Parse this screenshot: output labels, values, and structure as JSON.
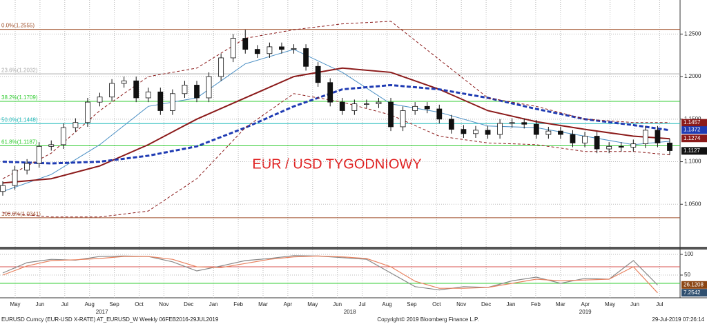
{
  "chart_data": {
    "type": "candlestick",
    "title": "EUR / USD TYGODNIOWY",
    "ylim": [
      1.0,
      1.29
    ],
    "yticks": [
      {
        "value": 1.25,
        "label": "1.2500"
      },
      {
        "value": 1.2,
        "label": "1.2000"
      },
      {
        "value": 1.15,
        "label": "1.1500"
      },
      {
        "value": 1.1,
        "label": "1.1000"
      },
      {
        "value": 1.05,
        "label": "1.0500"
      }
    ],
    "grid": true,
    "years": [
      {
        "year": "2017",
        "months": [
          "May",
          "Jun",
          "Jul",
          "Aug",
          "Sep",
          "Oct",
          "Nov",
          "Dec"
        ]
      },
      {
        "year": "2018",
        "months": [
          "Jan",
          "Feb",
          "Mar",
          "Apr",
          "May",
          "Jun",
          "Jul",
          "Aug",
          "Sep",
          "Oct",
          "Nov",
          "Dec"
        ]
      },
      {
        "year": "2019",
        "months": [
          "Jan",
          "Feb",
          "Mar",
          "Apr",
          "May",
          "Jun",
          "Jul"
        ]
      }
    ],
    "candles": {
      "open": [
        1.065,
        1.072,
        1.09,
        1.098,
        1.118,
        1.12,
        1.14,
        1.146,
        1.17,
        1.176,
        1.192,
        1.195,
        1.175,
        1.182,
        1.16,
        1.18,
        1.19,
        1.175,
        1.2,
        1.222,
        1.245,
        1.232,
        1.227,
        1.235,
        1.232,
        1.233,
        1.212,
        1.193,
        1.17,
        1.16,
        1.168,
        1.168,
        1.17,
        1.141,
        1.16,
        1.165,
        1.162,
        1.15,
        1.138,
        1.133,
        1.137,
        1.132,
        1.145,
        1.146,
        1.144,
        1.132,
        1.136,
        1.132,
        1.122,
        1.13,
        1.115,
        1.118,
        1.117,
        1.121,
        1.137,
        1.122
      ],
      "high": [
        1.077,
        1.095,
        1.103,
        1.123,
        1.125,
        1.145,
        1.151,
        1.175,
        1.181,
        1.197,
        1.2,
        1.2,
        1.187,
        1.187,
        1.185,
        1.195,
        1.195,
        1.205,
        1.227,
        1.25,
        1.255,
        1.237,
        1.24,
        1.24,
        1.238,
        1.238,
        1.217,
        1.198,
        1.175,
        1.173,
        1.173,
        1.175,
        1.175,
        1.165,
        1.17,
        1.17,
        1.167,
        1.155,
        1.143,
        1.142,
        1.142,
        1.15,
        1.151,
        1.151,
        1.149,
        1.141,
        1.141,
        1.137,
        1.135,
        1.135,
        1.123,
        1.123,
        1.126,
        1.142,
        1.142,
        1.127
      ],
      "low": [
        1.06,
        1.067,
        1.085,
        1.093,
        1.113,
        1.115,
        1.135,
        1.141,
        1.165,
        1.171,
        1.187,
        1.17,
        1.17,
        1.155,
        1.155,
        1.175,
        1.17,
        1.17,
        1.195,
        1.217,
        1.227,
        1.222,
        1.222,
        1.227,
        1.227,
        1.207,
        1.188,
        1.165,
        1.155,
        1.155,
        1.163,
        1.163,
        1.136,
        1.136,
        1.155,
        1.157,
        1.145,
        1.133,
        1.128,
        1.128,
        1.127,
        1.127,
        1.14,
        1.139,
        1.127,
        1.127,
        1.127,
        1.117,
        1.117,
        1.11,
        1.11,
        1.112,
        1.112,
        1.116,
        1.117,
        1.108
      ],
      "close": [
        1.072,
        1.09,
        1.098,
        1.118,
        1.12,
        1.14,
        1.146,
        1.17,
        1.176,
        1.192,
        1.195,
        1.175,
        1.182,
        1.16,
        1.18,
        1.19,
        1.175,
        1.2,
        1.222,
        1.245,
        1.232,
        1.227,
        1.235,
        1.232,
        1.233,
        1.212,
        1.193,
        1.17,
        1.16,
        1.168,
        1.168,
        1.17,
        1.141,
        1.16,
        1.165,
        1.162,
        1.15,
        1.138,
        1.133,
        1.137,
        1.132,
        1.145,
        1.146,
        1.144,
        1.132,
        1.136,
        1.132,
        1.122,
        1.13,
        1.115,
        1.118,
        1.117,
        1.121,
        1.137,
        1.122,
        1.113
      ]
    },
    "line_x": [
      0,
      4,
      8,
      12,
      16,
      20,
      24,
      28,
      32,
      36,
      40,
      44,
      48,
      52,
      55
    ],
    "series": [
      {
        "color": "#4a8fc4",
        "width": 1,
        "dash": false,
        "values": [
          1.065,
          1.085,
          1.12,
          1.165,
          1.175,
          1.215,
          1.232,
          1.205,
          1.168,
          1.158,
          1.142,
          1.14,
          1.13,
          1.12,
          1.124
        ]
      },
      {
        "color": "#8b1a1a",
        "width": 2,
        "dash": false,
        "values": [
          1.075,
          1.08,
          1.095,
          1.12,
          1.15,
          1.175,
          1.2,
          1.21,
          1.205,
          1.185,
          1.16,
          1.147,
          1.138,
          1.13,
          1.127
        ]
      },
      {
        "color": "#1f3bb3",
        "width": 3,
        "dash": true,
        "values": [
          1.1,
          1.098,
          1.1,
          1.107,
          1.118,
          1.14,
          1.165,
          1.185,
          1.19,
          1.185,
          1.175,
          1.162,
          1.15,
          1.143,
          1.137
        ]
      },
      {
        "color": "#8b1a1a",
        "width": 1,
        "dash": true,
        "values": [
          1.08,
          1.11,
          1.16,
          1.2,
          1.21,
          1.245,
          1.255,
          1.262,
          1.265,
          1.22,
          1.175,
          1.165,
          1.15,
          1.146,
          1.146
        ]
      },
      {
        "color": "#8b1a1a",
        "width": 1,
        "dash": true,
        "values": [
          1.04,
          1.035,
          1.035,
          1.042,
          1.08,
          1.14,
          1.18,
          1.17,
          1.155,
          1.13,
          1.122,
          1.12,
          1.112,
          1.112,
          1.108
        ]
      }
    ],
    "fib_levels": [
      {
        "label": "0.0%(1.2555)",
        "value": 1.2555,
        "color": "#a0522d"
      },
      {
        "label": "23.6%(1.2032)",
        "value": 1.2032,
        "color": "#aaaaaa"
      },
      {
        "label": "38.2%(1.1709)",
        "value": 1.1709,
        "color": "#33cc33"
      },
      {
        "label": "50.0%(1.1448)",
        "value": 1.1448,
        "color": "#22bbbb"
      },
      {
        "label": "61.8%(1.1187)",
        "value": 1.1187,
        "color": "#33cc33"
      },
      {
        "label": "100.0%(1.0341)",
        "value": 1.0341,
        "color": "#a0522d"
      }
    ],
    "tags": [
      {
        "value": 1.1457,
        "color": "#8b1a1a"
      },
      {
        "value": 1.1372,
        "color": "#1f3bb3"
      },
      {
        "value": 1.1274,
        "color": "#8b1a1a"
      },
      {
        "value": 1.1127,
        "color": "#111111"
      }
    ],
    "oscillator": {
      "ylim": [
        -5,
        110
      ],
      "yticks": [
        100,
        50
      ],
      "levels": [
        {
          "value": 70,
          "color": "#d9534f"
        },
        {
          "value": 30,
          "color": "#33cc33"
        }
      ],
      "x": [
        0,
        2,
        4,
        6,
        8,
        10,
        12,
        14,
        16,
        18,
        20,
        22,
        24,
        26,
        28,
        30,
        32,
        34,
        36,
        38,
        40,
        42,
        44,
        46,
        48,
        50,
        52,
        54
      ],
      "series": [
        {
          "color": "#888888",
          "values": [
            55,
            80,
            88,
            86,
            95,
            96,
            95,
            82,
            60,
            72,
            85,
            90,
            97,
            96,
            92,
            88,
            55,
            22,
            14,
            22,
            20,
            36,
            45,
            30,
            42,
            40,
            85,
            26
          ]
        },
        {
          "color": "#e8825f",
          "values": [
            50,
            72,
            85,
            87,
            90,
            95,
            95,
            88,
            70,
            68,
            78,
            88,
            94,
            96,
            94,
            90,
            70,
            35,
            18,
            18,
            20,
            30,
            40,
            36,
            38,
            40,
            70,
            7
          ]
        }
      ],
      "tags": [
        {
          "value": 26.1208,
          "color": "#8b4513"
        },
        {
          "value": 7.2542,
          "color": "#2f4f6f"
        }
      ]
    },
    "footer": {
      "left": "EURUSD Curncy (EUR-USD X-RATE) AT_EURUSD_W  Weekly 06FEB2016-29JUL2019",
      "center": "Copyright© 2019 Bloomberg Finance L.P.",
      "right": "29-Jul-2019 07:26:14"
    }
  }
}
